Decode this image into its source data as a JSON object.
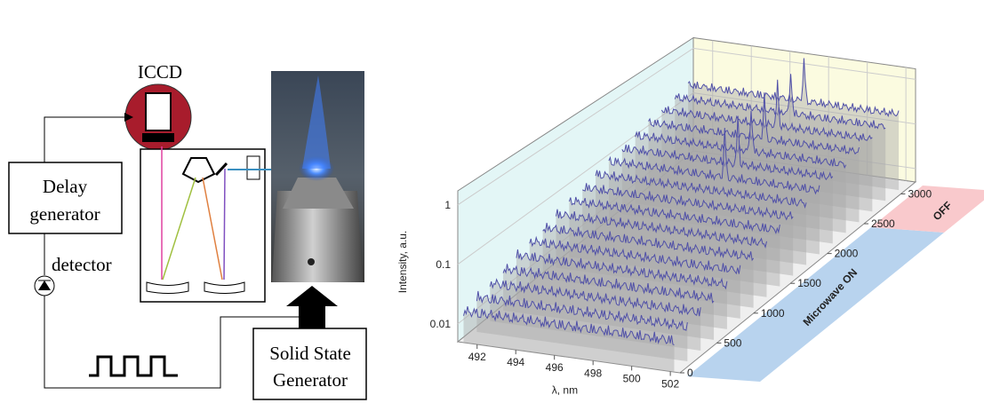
{
  "diagram": {
    "iccd": "ICCD",
    "delay_generator": [
      "Delay",
      "generator"
    ],
    "detector": "detector",
    "solid_state_generator": [
      "Solid State",
      "Generator"
    ]
  },
  "plot": {
    "y_label": "Intensity, a.u.",
    "x_label": "λ, nm",
    "x_ticks": [
      492,
      494,
      496,
      498,
      500,
      502
    ],
    "y_ticks": [
      1,
      0.1,
      0.01
    ],
    "depth_ticks": [
      0,
      500,
      1000,
      1500,
      2000,
      2500,
      3000
    ],
    "regions": [
      "Microwave ON",
      "OFF"
    ]
  }
}
